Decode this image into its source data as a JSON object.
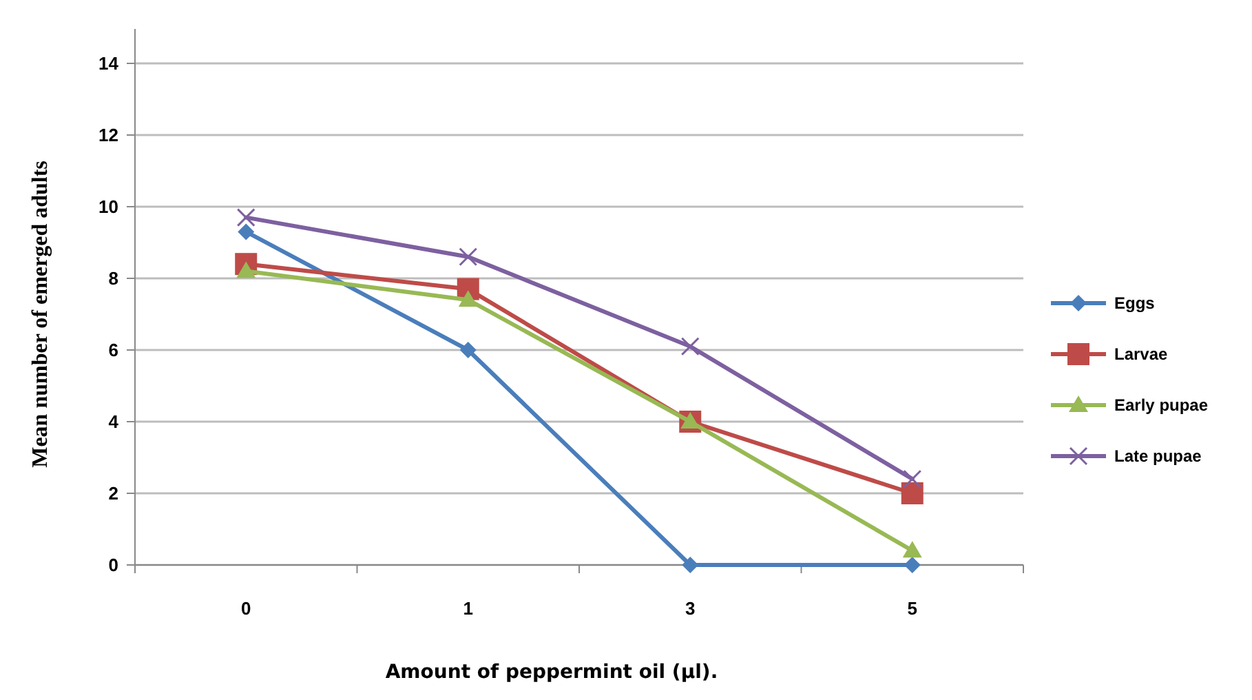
{
  "chart_data": {
    "type": "line",
    "xlabel": "Amount of peppermint oil (µl).",
    "ylabel": "Mean number of emerged adults",
    "categories": [
      "0",
      "1",
      "3",
      "5"
    ],
    "ylim": [
      0,
      14
    ],
    "yticks": [
      0,
      2,
      4,
      6,
      8,
      10,
      12,
      14
    ],
    "grid": "y",
    "legend": "right",
    "series": [
      {
        "name": "Eggs",
        "color": "#4a7ebb",
        "marker": "diamond",
        "values": [
          9.3,
          6.0,
          0,
          0
        ]
      },
      {
        "name": "Larvae",
        "color": "#be4b48",
        "marker": "square",
        "values": [
          8.4,
          7.7,
          4.0,
          2.0
        ]
      },
      {
        "name": "Early pupae",
        "color": "#98b954",
        "marker": "triangle",
        "values": [
          8.2,
          7.4,
          4.0,
          0.4
        ]
      },
      {
        "name": "Late pupae",
        "color": "#7d60a0",
        "marker": "cross",
        "values": [
          9.7,
          8.6,
          6.1,
          2.4
        ]
      }
    ]
  }
}
